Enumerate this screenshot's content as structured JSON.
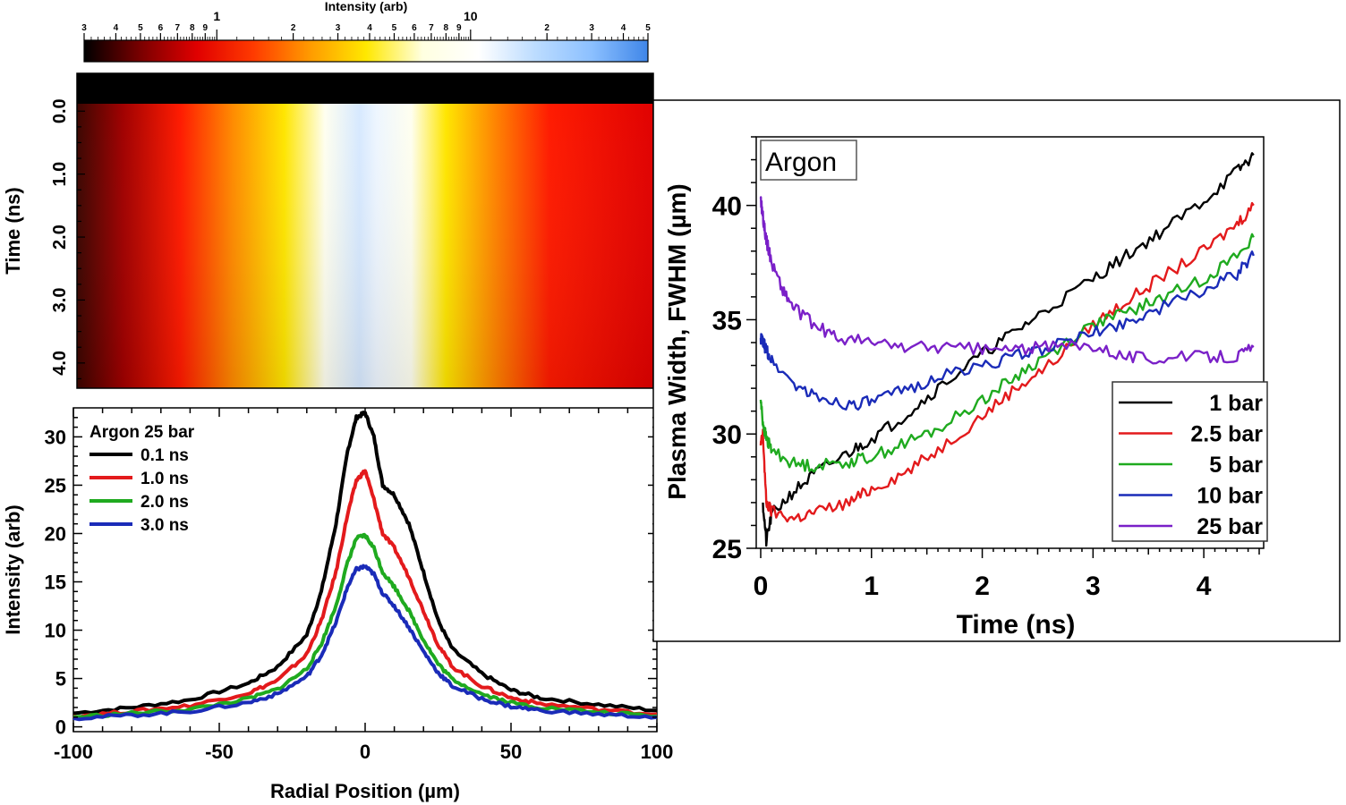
{
  "colors": {
    "black": "#000000",
    "red": "#e31a1c",
    "green": "#1faa1f",
    "blue": "#1a2bb8",
    "purple": "#7a20c8",
    "colorbar_stops": [
      "#000000",
      "#7a0000",
      "#e00000",
      "#ff3a00",
      "#ff9a00",
      "#ffe800",
      "#ffffe0",
      "#ffffff",
      "#bcdcff",
      "#8cc0ff",
      "#3f86e8"
    ]
  },
  "chart_data": [
    {
      "type": "heatmap",
      "name": "streak-image",
      "colorbar": {
        "label": "Intensity (arb)",
        "scale": "log",
        "range": [
          0.3,
          50
        ],
        "ticks": [
          {
            "v": 0.3,
            "t": "3"
          },
          {
            "v": 0.4,
            "t": "4"
          },
          {
            "v": 0.5,
            "t": "5"
          },
          {
            "v": 0.6,
            "t": "6"
          },
          {
            "v": 0.7,
            "t": "7"
          },
          {
            "v": 0.8,
            "t": "8"
          },
          {
            "v": 0.9,
            "t": "9"
          },
          {
            "v": 1,
            "t": "1"
          },
          {
            "v": 2,
            "t": "2"
          },
          {
            "v": 3,
            "t": "3"
          },
          {
            "v": 4,
            "t": "4"
          },
          {
            "v": 5,
            "t": "5"
          },
          {
            "v": 6,
            "t": "6"
          },
          {
            "v": 7,
            "t": "7"
          },
          {
            "v": 8,
            "t": "8"
          },
          {
            "v": 9,
            "t": "9"
          },
          {
            "v": 10,
            "t": "10"
          },
          {
            "v": 20,
            "t": "2"
          },
          {
            "v": 30,
            "t": "3"
          },
          {
            "v": 40,
            "t": "4"
          },
          {
            "v": 50,
            "t": "5"
          }
        ]
      },
      "ylabel": "Time (ns)",
      "ylim": [
        -0.6,
        4.4
      ],
      "yticks": [
        {
          "v": 0,
          "t": "0.0"
        },
        {
          "v": 1,
          "t": "1.0"
        },
        {
          "v": 2,
          "t": "2.0"
        },
        {
          "v": 3,
          "t": "3.0"
        },
        {
          "v": 4,
          "t": "4.0"
        }
      ],
      "xlim": [
        -100,
        100
      ]
    },
    {
      "type": "line",
      "name": "radial-profiles",
      "xlabel": "Radial Position (µm)",
      "ylabel": "Intensity (arb)",
      "xlim": [
        -100,
        100
      ],
      "ylim": [
        -0.5,
        33
      ],
      "xticks": [
        -100,
        -50,
        0,
        50,
        100
      ],
      "yticks": [
        0,
        5,
        10,
        15,
        20,
        25,
        30
      ],
      "legend_title": "Argon 25 bar",
      "legend_position": "top-left",
      "series": [
        {
          "name": "0.1 ns",
          "color": "#000000",
          "x": [
            -100,
            -80,
            -60,
            -40,
            -30,
            -20,
            -15,
            -10,
            -6,
            -3,
            0,
            3,
            6,
            10,
            15,
            20,
            25,
            30,
            40,
            50,
            60,
            80,
            100
          ],
          "y": [
            1.4,
            2.0,
            2.8,
            4.5,
            6.2,
            9.5,
            14,
            21,
            28.5,
            32,
            32.5,
            30,
            25,
            24,
            21,
            16,
            11,
            8,
            5.5,
            3.8,
            3,
            2.3,
            1.7
          ]
        },
        {
          "name": "1.0 ns",
          "color": "#e31a1c",
          "x": [
            -100,
            -80,
            -60,
            -40,
            -30,
            -20,
            -15,
            -10,
            -6,
            -3,
            0,
            3,
            6,
            10,
            15,
            20,
            25,
            30,
            40,
            50,
            60,
            80,
            100
          ],
          "y": [
            1.1,
            1.6,
            2.2,
            3.5,
            4.8,
            7.5,
            11,
            16,
            22,
            25.5,
            26.5,
            23.5,
            20,
            18.5,
            15.5,
            12,
            8.5,
            6.2,
            4.2,
            3.0,
            2.4,
            1.8,
            1.3
          ]
        },
        {
          "name": "2.0 ns",
          "color": "#1faa1f",
          "x": [
            -100,
            -80,
            -60,
            -40,
            -30,
            -20,
            -15,
            -10,
            -6,
            -3,
            0,
            3,
            6,
            10,
            15,
            20,
            25,
            30,
            40,
            50,
            60,
            80,
            100
          ],
          "y": [
            1.0,
            1.4,
            1.8,
            2.9,
            3.9,
            6.0,
            8.6,
            12.5,
            17,
            19.5,
            19.8,
            18.5,
            16,
            14.5,
            12,
            9.0,
            6.5,
            4.9,
            3.4,
            2.5,
            2.0,
            1.5,
            1.1
          ]
        },
        {
          "name": "3.0 ns",
          "color": "#1a2bb8",
          "x": [
            -100,
            -80,
            -60,
            -40,
            -30,
            -20,
            -15,
            -10,
            -6,
            -3,
            0,
            3,
            6,
            10,
            15,
            20,
            25,
            30,
            40,
            50,
            60,
            80,
            100
          ],
          "y": [
            0.9,
            1.2,
            1.6,
            2.5,
            3.4,
            5.2,
            7.4,
            10.8,
            14.5,
            16.3,
            16.6,
            15.8,
            13.8,
            12.5,
            10.3,
            7.8,
            5.6,
            4.2,
            2.9,
            2.1,
            1.7,
            1.3,
            1.0
          ]
        }
      ]
    },
    {
      "type": "line",
      "name": "plasma-width",
      "xlabel": "Time (ns)",
      "ylabel": "Plasma Width, FWHM (µm)",
      "xlim": [
        0,
        4.5
      ],
      "ylim": [
        25,
        43
      ],
      "xticks": [
        0,
        1,
        2,
        3,
        4
      ],
      "yticks": [
        25,
        30,
        35,
        40
      ],
      "annotation": "Argon",
      "legend_position": "bottom-right",
      "series": [
        {
          "name": "1 bar",
          "color": "#000000",
          "x": [
            0.02,
            0.05,
            0.1,
            0.3,
            0.5,
            0.8,
            1.0,
            1.3,
            1.6,
            2.0,
            2.3,
            2.6,
            3.0,
            3.3,
            3.6,
            4.0,
            4.3,
            4.45
          ],
          "y": [
            27,
            25.3,
            26.5,
            27.5,
            28.3,
            29.2,
            29.8,
            30.8,
            32,
            33.5,
            34.5,
            35.5,
            36.8,
            37.8,
            38.8,
            40.2,
            41.5,
            42.2
          ]
        },
        {
          "name": "2.5 bar",
          "color": "#e31a1c",
          "x": [
            0.0,
            0.02,
            0.05,
            0.1,
            0.3,
            0.5,
            0.8,
            1.0,
            1.3,
            1.6,
            2.0,
            2.3,
            2.6,
            3.0,
            3.3,
            3.6,
            4.0,
            4.3,
            4.45
          ],
          "y": [
            29.5,
            30,
            27,
            26.6,
            26.3,
            26.6,
            27,
            27.6,
            28.3,
            29.3,
            30.8,
            32,
            33,
            34.8,
            35.8,
            36.8,
            38,
            39.2,
            40
          ]
        },
        {
          "name": "5 bar",
          "color": "#1faa1f",
          "x": [
            0.0,
            0.02,
            0.05,
            0.1,
            0.3,
            0.5,
            0.8,
            1.0,
            1.3,
            1.6,
            2.0,
            2.3,
            2.6,
            3.0,
            3.3,
            3.6,
            4.0,
            4.3,
            4.45
          ],
          "y": [
            31.5,
            30.5,
            29.8,
            29.3,
            28.7,
            28.6,
            28.8,
            29,
            29.6,
            30.2,
            31.5,
            32.5,
            33.5,
            34.8,
            35.3,
            35.9,
            36.8,
            37.8,
            38.6
          ]
        },
        {
          "name": "10 bar",
          "color": "#1a2bb8",
          "x": [
            0.0,
            0.02,
            0.05,
            0.1,
            0.3,
            0.5,
            0.8,
            1.0,
            1.3,
            1.6,
            2.0,
            2.3,
            2.6,
            3.0,
            3.3,
            3.6,
            4.0,
            4.3,
            4.45
          ],
          "y": [
            34.2,
            34,
            33.7,
            33.2,
            32.2,
            31.6,
            31.3,
            31.4,
            31.9,
            32.5,
            33,
            33.4,
            33.8,
            34.4,
            34.9,
            35.5,
            36.3,
            37,
            37.8
          ]
        },
        {
          "name": "25 bar",
          "color": "#7a20c8",
          "x": [
            0.0,
            0.02,
            0.05,
            0.1,
            0.2,
            0.3,
            0.5,
            0.7,
            1.0,
            1.3,
            1.6,
            2.0,
            2.3,
            2.6,
            3.0,
            3.3,
            3.6,
            4.0,
            4.3,
            4.45
          ],
          "y": [
            40.3,
            39.5,
            38.5,
            37.5,
            36.3,
            35.5,
            34.7,
            34.2,
            34,
            33.8,
            33.8,
            33.7,
            33.7,
            33.8,
            33.9,
            33.4,
            33.3,
            33.4,
            33.4,
            33.8
          ]
        }
      ]
    }
  ]
}
